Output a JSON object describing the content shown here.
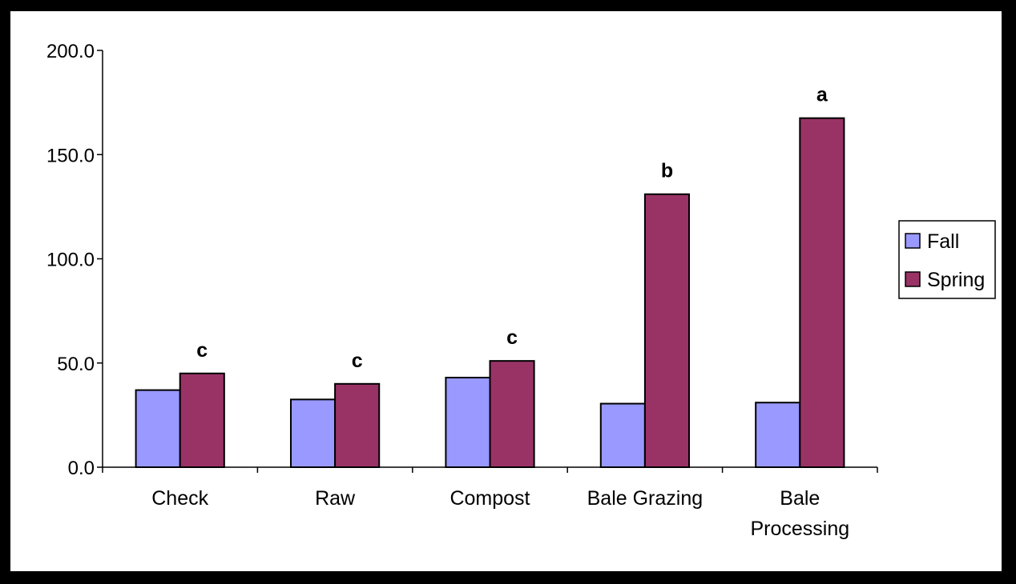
{
  "chart_data": {
    "type": "bar",
    "categories": [
      "Check",
      "Raw",
      "Compost",
      "Bale Grazing",
      "Bale Processing"
    ],
    "category_lines": [
      [
        "Check"
      ],
      [
        "Raw"
      ],
      [
        "Compost"
      ],
      [
        "Bale Grazing"
      ],
      [
        "Bale",
        "Processing"
      ]
    ],
    "series": [
      {
        "name": "Fall",
        "color": "#9999FF",
        "values": [
          37.0,
          32.5,
          43.0,
          30.5,
          31.0
        ]
      },
      {
        "name": "Spring",
        "color": "#993366",
        "values": [
          45.0,
          40.0,
          51.0,
          131.0,
          167.5
        ]
      }
    ],
    "annotations": [
      "c",
      "c",
      "c",
      "b",
      "a"
    ],
    "yticks": [
      "0.0",
      "50.0",
      "100.0",
      "150.0",
      "200.0"
    ],
    "ylim": [
      0,
      200
    ],
    "title": "",
    "xlabel": "",
    "ylabel": "",
    "grid": false,
    "legend_position": "right"
  }
}
